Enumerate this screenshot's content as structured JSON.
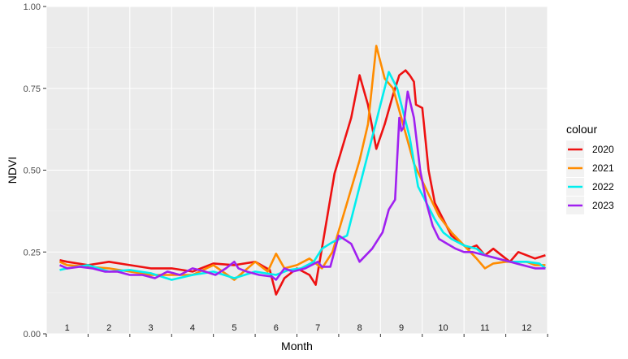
{
  "chart_data": {
    "type": "line",
    "xlabel": "Month",
    "ylabel": "NDVI",
    "x_tick_labels": [
      "1",
      "2",
      "3",
      "4",
      "5",
      "6",
      "7",
      "8",
      "9",
      "10",
      "11",
      "12"
    ],
    "y_ticks": [
      0.0,
      0.25,
      0.5,
      0.75,
      1.0
    ],
    "y_tick_labels": [
      "0.00",
      "0.25",
      "0.50",
      "0.75",
      "1.00"
    ],
    "xlim": [
      0.5,
      12.5
    ],
    "ylim": [
      0,
      1
    ],
    "grid": true,
    "legend": {
      "title": "colour",
      "position": "right"
    },
    "series": [
      {
        "name": "2020",
        "color": "#ee1111",
        "x": [
          0.82,
          1.0,
          1.5,
          2.0,
          2.5,
          3.0,
          3.5,
          4.0,
          4.5,
          5.0,
          5.5,
          5.85,
          6.0,
          6.2,
          6.5,
          6.8,
          6.95,
          7.15,
          7.4,
          7.8,
          8.0,
          8.2,
          8.4,
          8.6,
          8.8,
          8.95,
          9.1,
          9.2,
          9.3,
          9.35,
          9.5,
          9.65,
          9.8,
          10.0,
          10.2,
          10.4,
          10.6,
          10.8,
          11.0,
          11.2,
          11.4,
          11.6,
          11.8,
          12.0,
          12.2,
          12.45
        ],
        "values": [
          0.225,
          0.22,
          0.21,
          0.22,
          0.21,
          0.2,
          0.2,
          0.19,
          0.215,
          0.21,
          0.22,
          0.195,
          0.12,
          0.17,
          0.2,
          0.18,
          0.15,
          0.3,
          0.49,
          0.66,
          0.79,
          0.7,
          0.565,
          0.64,
          0.73,
          0.79,
          0.805,
          0.79,
          0.77,
          0.7,
          0.69,
          0.5,
          0.4,
          0.35,
          0.3,
          0.28,
          0.26,
          0.27,
          0.24,
          0.26,
          0.24,
          0.22,
          0.25,
          0.24,
          0.23,
          0.24
        ]
      },
      {
        "name": "2021",
        "color": "#ff8c00",
        "x": [
          0.82,
          1.0,
          1.5,
          2.0,
          2.5,
          3.0,
          3.5,
          4.0,
          4.5,
          5.0,
          5.5,
          5.8,
          6.0,
          6.2,
          6.5,
          6.8,
          7.1,
          7.35,
          7.7,
          8.0,
          8.2,
          8.4,
          8.6,
          8.8,
          9.0,
          9.3,
          9.6,
          9.9,
          10.2,
          10.5,
          10.8,
          11.0,
          11.2,
          11.5,
          11.8,
          12.0,
          12.2,
          12.45
        ],
        "values": [
          0.22,
          0.21,
          0.205,
          0.2,
          0.19,
          0.18,
          0.18,
          0.18,
          0.21,
          0.165,
          0.22,
          0.19,
          0.245,
          0.2,
          0.21,
          0.23,
          0.2,
          0.25,
          0.4,
          0.53,
          0.64,
          0.88,
          0.78,
          0.75,
          0.66,
          0.52,
          0.44,
          0.36,
          0.31,
          0.27,
          0.23,
          0.2,
          0.215,
          0.22,
          0.22,
          0.22,
          0.21,
          0.21
        ]
      },
      {
        "name": "2022",
        "color": "#00eeee",
        "x": [
          0.82,
          1.0,
          1.5,
          2.0,
          2.5,
          3.0,
          3.5,
          4.0,
          4.5,
          5.0,
          5.5,
          6.0,
          6.3,
          6.6,
          6.9,
          7.1,
          7.35,
          7.7,
          8.0,
          8.3,
          8.5,
          8.7,
          8.9,
          9.0,
          9.2,
          9.4,
          9.6,
          9.8,
          10.0,
          10.2,
          10.5,
          10.8,
          11.0,
          11.3,
          11.6,
          12.0,
          12.3,
          12.45
        ],
        "values": [
          0.195,
          0.2,
          0.21,
          0.19,
          0.195,
          0.185,
          0.165,
          0.18,
          0.19,
          0.17,
          0.19,
          0.18,
          0.195,
          0.2,
          0.22,
          0.26,
          0.28,
          0.3,
          0.45,
          0.6,
          0.7,
          0.8,
          0.75,
          0.7,
          0.6,
          0.45,
          0.4,
          0.35,
          0.31,
          0.29,
          0.27,
          0.26,
          0.24,
          0.23,
          0.22,
          0.22,
          0.215,
          0.2
        ]
      },
      {
        "name": "2023",
        "color": "#a020f0",
        "x": [
          0.82,
          1.0,
          1.3,
          1.6,
          1.9,
          2.2,
          2.5,
          2.8,
          3.1,
          3.4,
          3.7,
          4.0,
          4.3,
          4.55,
          4.8,
          5.0,
          5.1,
          5.3,
          5.6,
          5.9,
          6.0,
          6.2,
          6.4,
          6.7,
          7.0,
          7.1,
          7.3,
          7.5,
          7.8,
          8.0,
          8.3,
          8.55,
          8.7,
          8.85,
          8.95,
          9.0,
          9.05,
          9.15,
          9.3,
          9.45,
          9.6,
          9.75,
          9.9,
          10.1,
          10.3,
          10.5,
          10.7,
          11.0,
          11.3,
          11.6,
          11.9,
          12.2,
          12.45
        ],
        "values": [
          0.21,
          0.2,
          0.205,
          0.2,
          0.19,
          0.19,
          0.18,
          0.18,
          0.17,
          0.19,
          0.18,
          0.2,
          0.19,
          0.18,
          0.2,
          0.22,
          0.2,
          0.19,
          0.18,
          0.175,
          0.165,
          0.2,
          0.19,
          0.2,
          0.22,
          0.205,
          0.205,
          0.3,
          0.275,
          0.22,
          0.26,
          0.31,
          0.38,
          0.41,
          0.66,
          0.62,
          0.63,
          0.74,
          0.66,
          0.5,
          0.4,
          0.33,
          0.29,
          0.275,
          0.26,
          0.25,
          0.25,
          0.24,
          0.23,
          0.22,
          0.21,
          0.2,
          0.2
        ]
      }
    ]
  }
}
